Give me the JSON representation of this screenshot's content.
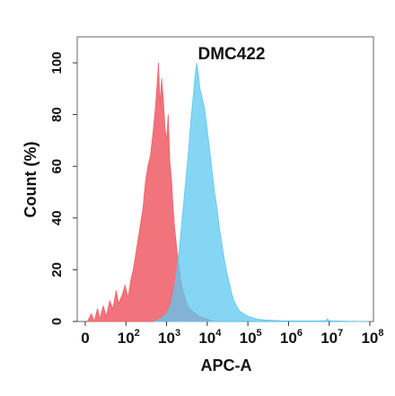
{
  "chart_data": {
    "type": "area",
    "title": "DMC422",
    "xlabel": "APC-A",
    "ylabel": "Count  (%)",
    "x_scale": "log",
    "ylim": [
      0,
      100
    ],
    "grid": false,
    "y_ticks": [
      "0",
      "20",
      "40",
      "60",
      "80",
      "100"
    ],
    "x_ticks": [
      {
        "base": "0",
        "exp": ""
      },
      {
        "base": "10",
        "exp": "2"
      },
      {
        "base": "10",
        "exp": "3"
      },
      {
        "base": "10",
        "exp": "4"
      },
      {
        "base": "10",
        "exp": "5"
      },
      {
        "base": "10",
        "exp": "6"
      },
      {
        "base": "10",
        "exp": "7"
      },
      {
        "base": "10",
        "exp": "8"
      }
    ],
    "x_tick_positions": [
      0.0,
      1.0,
      2.0,
      3.0,
      4.0,
      5.0,
      6.0,
      7.0
    ],
    "series": [
      {
        "color": "#f0646e",
        "points": [
          [
            0.05,
            0
          ],
          [
            0.15,
            3
          ],
          [
            0.22,
            0
          ],
          [
            0.3,
            5
          ],
          [
            0.36,
            1
          ],
          [
            0.44,
            6
          ],
          [
            0.52,
            2
          ],
          [
            0.6,
            8
          ],
          [
            0.68,
            5
          ],
          [
            0.76,
            12
          ],
          [
            0.82,
            7
          ],
          [
            0.9,
            10
          ],
          [
            0.98,
            14
          ],
          [
            1.05,
            9
          ],
          [
            1.12,
            16
          ],
          [
            1.18,
            20
          ],
          [
            1.24,
            26
          ],
          [
            1.3,
            32
          ],
          [
            1.36,
            38
          ],
          [
            1.42,
            44
          ],
          [
            1.48,
            54
          ],
          [
            1.54,
            60
          ],
          [
            1.6,
            64
          ],
          [
            1.66,
            72
          ],
          [
            1.72,
            82
          ],
          [
            1.76,
            90
          ],
          [
            1.8,
            100
          ],
          [
            1.84,
            84
          ],
          [
            1.88,
            94
          ],
          [
            1.92,
            86
          ],
          [
            1.96,
            75
          ],
          [
            2.0,
            70
          ],
          [
            2.04,
            80
          ],
          [
            2.08,
            62
          ],
          [
            2.12,
            55
          ],
          [
            2.16,
            44
          ],
          [
            2.2,
            36
          ],
          [
            2.24,
            30
          ],
          [
            2.28,
            24
          ],
          [
            2.34,
            17
          ],
          [
            2.4,
            12
          ],
          [
            2.46,
            9
          ],
          [
            2.52,
            6
          ],
          [
            2.58,
            5
          ],
          [
            2.64,
            4
          ],
          [
            2.72,
            3
          ],
          [
            2.8,
            2
          ],
          [
            2.9,
            1.5
          ],
          [
            3.0,
            1
          ],
          [
            3.2,
            0
          ]
        ]
      },
      {
        "color": "#5cc8f2",
        "points": [
          [
            1.7,
            0
          ],
          [
            1.85,
            1
          ],
          [
            2.0,
            3
          ],
          [
            2.1,
            6
          ],
          [
            2.18,
            12
          ],
          [
            2.24,
            18
          ],
          [
            2.3,
            26
          ],
          [
            2.36,
            36
          ],
          [
            2.42,
            46
          ],
          [
            2.48,
            56
          ],
          [
            2.54,
            66
          ],
          [
            2.6,
            78
          ],
          [
            2.66,
            88
          ],
          [
            2.7,
            95
          ],
          [
            2.74,
            100
          ],
          [
            2.78,
            96
          ],
          [
            2.82,
            90
          ],
          [
            2.88,
            86
          ],
          [
            2.94,
            82
          ],
          [
            3.0,
            74
          ],
          [
            3.06,
            66
          ],
          [
            3.12,
            58
          ],
          [
            3.18,
            50
          ],
          [
            3.24,
            44
          ],
          [
            3.3,
            36
          ],
          [
            3.36,
            30
          ],
          [
            3.42,
            24
          ],
          [
            3.48,
            19
          ],
          [
            3.54,
            15
          ],
          [
            3.6,
            11
          ],
          [
            3.66,
            8
          ],
          [
            3.72,
            6
          ],
          [
            3.8,
            4
          ],
          [
            3.9,
            3
          ],
          [
            4.0,
            2
          ],
          [
            4.1,
            1.5
          ],
          [
            4.2,
            1
          ],
          [
            4.4,
            0.6
          ],
          [
            4.8,
            0.3
          ],
          [
            5.2,
            0.2
          ],
          [
            5.6,
            0.2
          ],
          [
            5.92,
            0.3
          ],
          [
            5.96,
            1
          ],
          [
            6.0,
            0.3
          ],
          [
            6.4,
            0.1
          ],
          [
            7.0,
            0
          ]
        ]
      }
    ]
  }
}
